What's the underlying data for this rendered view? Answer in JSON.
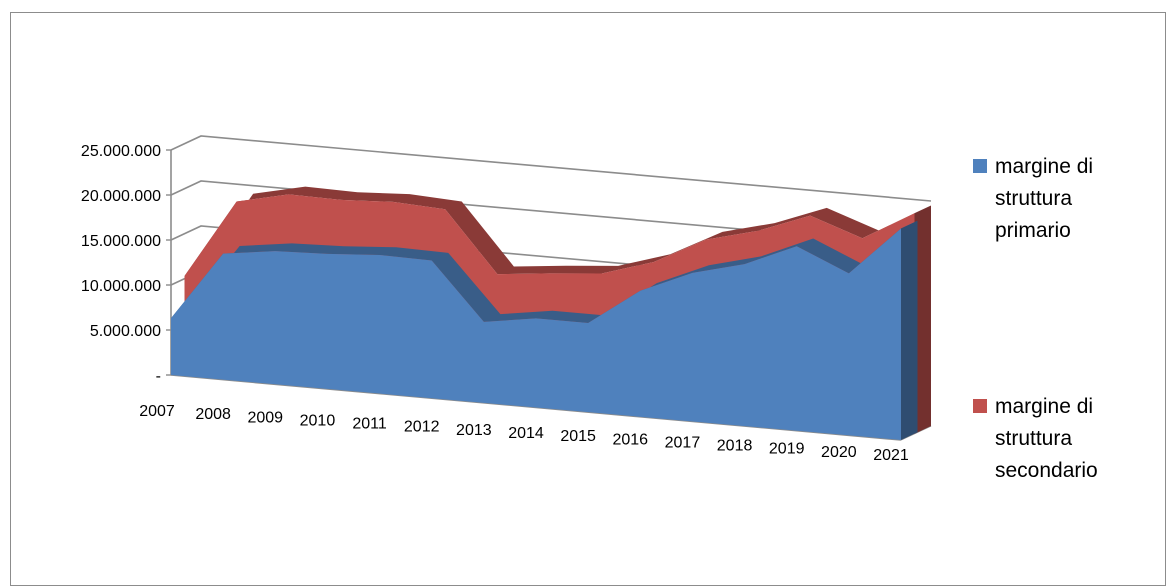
{
  "chart_data": {
    "type": "area",
    "subtype": "3d-stacked",
    "categories": [
      "2007",
      "2008",
      "2009",
      "2010",
      "2011",
      "2012",
      "2013",
      "2014",
      "2015",
      "2016",
      "2017",
      "2018",
      "2019",
      "2020",
      "2021"
    ],
    "series": [
      {
        "name": "margine di struttura primario",
        "color": "#4f81bd",
        "values": [
          6300000,
          14000000,
          14800000,
          15000000,
          15400000,
          15300000,
          9000000,
          9900000,
          9900000,
          14000000,
          16500000,
          18000000,
          20500000,
          18000000,
          23500000
        ]
      },
      {
        "name": "margine di struttura secondario",
        "color": "#c0504d",
        "values": [
          4000000,
          5100000,
          5600000,
          5300000,
          5200000,
          5000000,
          4600000,
          4300000,
          4800000,
          2500000,
          3000000,
          3000000,
          2700000,
          3200000,
          1000000
        ]
      }
    ],
    "y_tick_labels": [
      "-",
      "5.000.000",
      "10.000.000",
      "15.000.000",
      "20.000.000",
      "25.000.000"
    ],
    "ylim": [
      0,
      25000000
    ],
    "grid": true,
    "legend_position": "right"
  }
}
